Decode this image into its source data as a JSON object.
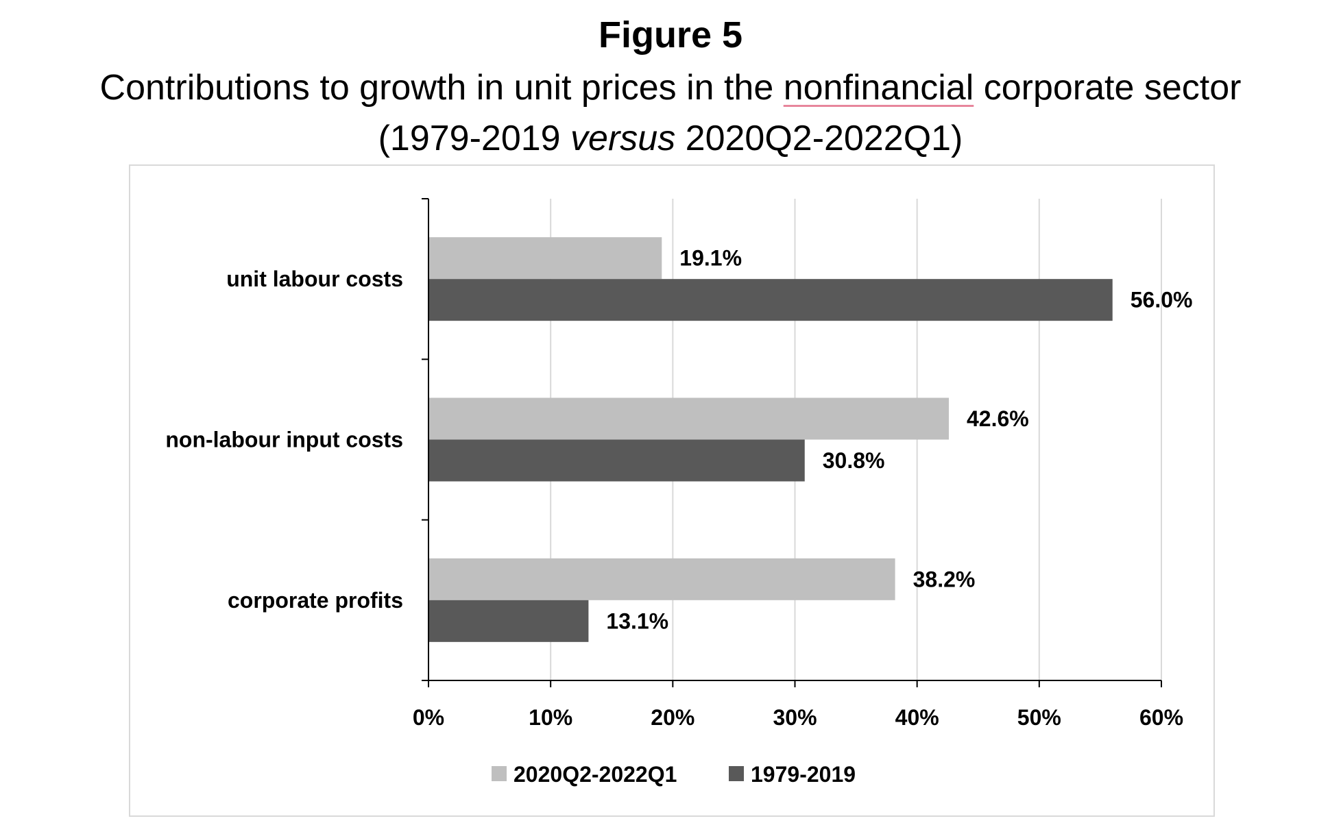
{
  "figure": {
    "label": "Figure 5",
    "title_part1": "Contributions to growth in unit prices in the ",
    "title_underlined": "nonfinancial",
    "title_part2": " corporate sector",
    "subtitle_open": "(1979-2019 ",
    "subtitle_italic": "versus",
    "subtitle_close": " 2020Q2-2022Q1)"
  },
  "chart_data": {
    "type": "bar",
    "orientation": "horizontal",
    "categories": [
      "unit labour costs",
      "non-labour input costs",
      "corporate profits"
    ],
    "series": [
      {
        "name": "2020Q2-2022Q1",
        "values": [
          19.1,
          42.6,
          38.2
        ],
        "labels": [
          "19.1%",
          "42.6%",
          "38.2%"
        ],
        "color": "#bfbfbf"
      },
      {
        "name": "1979-2019",
        "values": [
          56.0,
          30.8,
          13.1
        ],
        "labels": [
          "56.0%",
          "30.8%",
          "13.1%"
        ],
        "color": "#595959"
      }
    ],
    "xlim": [
      0,
      60
    ],
    "x_ticks": [
      0,
      10,
      20,
      30,
      40,
      50,
      60
    ],
    "x_tick_labels": [
      "0%",
      "10%",
      "20%",
      "30%",
      "40%",
      "50%",
      "60%"
    ],
    "grid": "vertical",
    "grid_color": "#d9d9d9",
    "legend_position": "bottom"
  }
}
